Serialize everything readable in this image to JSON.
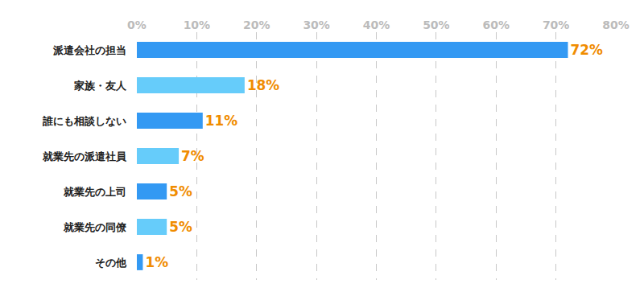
{
  "chart_data": {
    "type": "bar",
    "orientation": "horizontal",
    "categories": [
      "派遣会社の担当",
      "家族・友人",
      "誰にも相談しない",
      "就業先の派遣社員",
      "就業先の上司",
      "就業先の同僚",
      "その他"
    ],
    "values": [
      72,
      18,
      11,
      7,
      5,
      5,
      1
    ],
    "value_labels": [
      "72%",
      "18%",
      "11%",
      "7%",
      "5%",
      "5%",
      "1%"
    ],
    "colors": [
      "#3399f3",
      "#66ccfa",
      "#3399f3",
      "#66ccfa",
      "#3399f3",
      "#66ccfa",
      "#3399f3"
    ],
    "data_labels": true,
    "xlim": [
      0,
      80
    ],
    "xticks": [
      {
        "value": 0,
        "label": "0%"
      },
      {
        "value": 10,
        "label": "10%"
      },
      {
        "value": 20,
        "label": "20%"
      },
      {
        "value": 30,
        "label": "30%"
      },
      {
        "value": 40,
        "label": "40%"
      },
      {
        "value": 50,
        "label": "50%"
      },
      {
        "value": 60,
        "label": "60%"
      },
      {
        "value": 70,
        "label": "70%"
      },
      {
        "value": 80,
        "label": "80%"
      }
    ],
    "grid": true
  }
}
